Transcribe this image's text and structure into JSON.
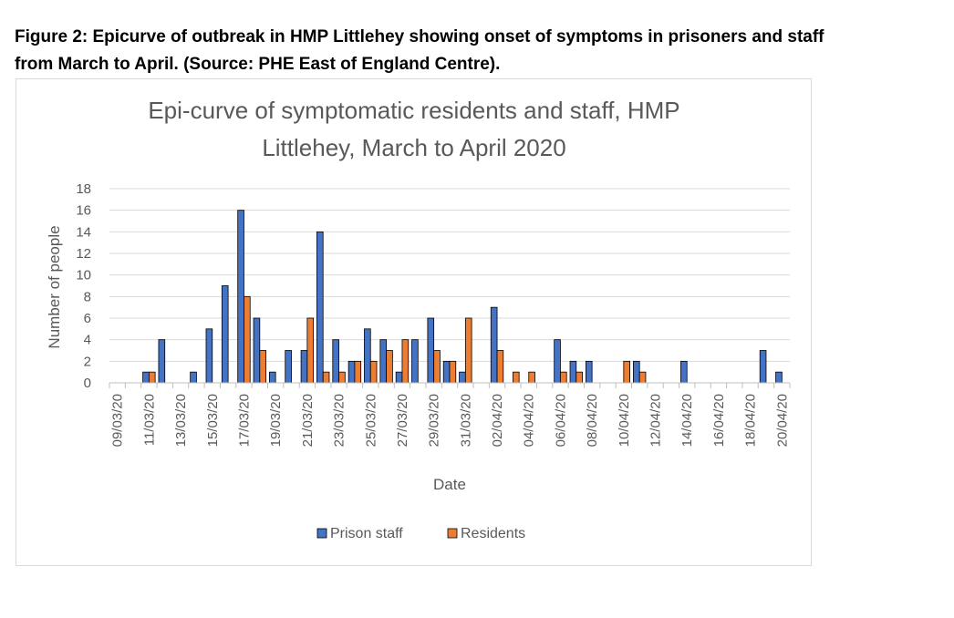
{
  "figure": {
    "caption_line1": "Figure 2: Epicurve of outbreak in HMP Littlehey showing onset of symptoms in prisoners and staff",
    "caption_line2": "from March to April. (Source: PHE East of England Centre)."
  },
  "chart_data": {
    "type": "bar",
    "title_line1": "Epi-curve of symptomatic residents and staff, HMP",
    "title_line2": "Littlehey, March to April 2020",
    "xlabel": "Date",
    "ylabel": "Number of people",
    "ylim": [
      0,
      18
    ],
    "yticks": [
      0,
      2,
      4,
      6,
      8,
      10,
      12,
      14,
      16,
      18
    ],
    "grid": true,
    "legend_position": "bottom",
    "categories": [
      "09/03/20",
      "10/03/20",
      "11/03/20",
      "12/03/20",
      "13/03/20",
      "14/03/20",
      "15/03/20",
      "16/03/20",
      "17/03/20",
      "18/03/20",
      "19/03/20",
      "20/03/20",
      "21/03/20",
      "22/03/20",
      "23/03/20",
      "24/03/20",
      "25/03/20",
      "26/03/20",
      "27/03/20",
      "28/03/20",
      "29/03/20",
      "30/03/20",
      "31/03/20",
      "01/04/20",
      "02/04/20",
      "03/04/20",
      "04/04/20",
      "05/04/20",
      "06/04/20",
      "07/04/20",
      "08/04/20",
      "09/04/20",
      "10/04/20",
      "11/04/20",
      "12/04/20",
      "13/04/20",
      "14/04/20",
      "15/04/20",
      "16/04/20",
      "17/04/20",
      "18/04/20",
      "19/04/20",
      "20/04/20"
    ],
    "tick_labels": [
      "09/03/20",
      "11/03/20",
      "13/03/20",
      "15/03/20",
      "17/03/20",
      "19/03/20",
      "21/03/20",
      "23/03/20",
      "25/03/20",
      "27/03/20",
      "29/03/20",
      "31/03/20",
      "02/04/20",
      "04/04/20",
      "06/04/20",
      "08/04/20",
      "10/04/20",
      "12/04/20",
      "14/04/20",
      "16/04/20",
      "18/04/20",
      "20/04/20"
    ],
    "series": [
      {
        "name": "Prison staff",
        "color": "#4472c4",
        "values": [
          0,
          0,
          1,
          4,
          0,
          1,
          5,
          9,
          16,
          6,
          1,
          3,
          3,
          14,
          4,
          2,
          5,
          4,
          1,
          4,
          6,
          2,
          1,
          0,
          7,
          0,
          0,
          0,
          4,
          2,
          2,
          0,
          0,
          2,
          0,
          0,
          2,
          0,
          0,
          0,
          0,
          3,
          1
        ]
      },
      {
        "name": "Residents",
        "color": "#ed7d31",
        "values": [
          0,
          0,
          1,
          0,
          0,
          0,
          0,
          0,
          8,
          3,
          0,
          0,
          6,
          1,
          1,
          2,
          2,
          3,
          4,
          0,
          3,
          2,
          6,
          0,
          3,
          1,
          1,
          0,
          1,
          1,
          0,
          0,
          2,
          1,
          0,
          0,
          0,
          0,
          0,
          0,
          0,
          0,
          0
        ]
      }
    ]
  }
}
